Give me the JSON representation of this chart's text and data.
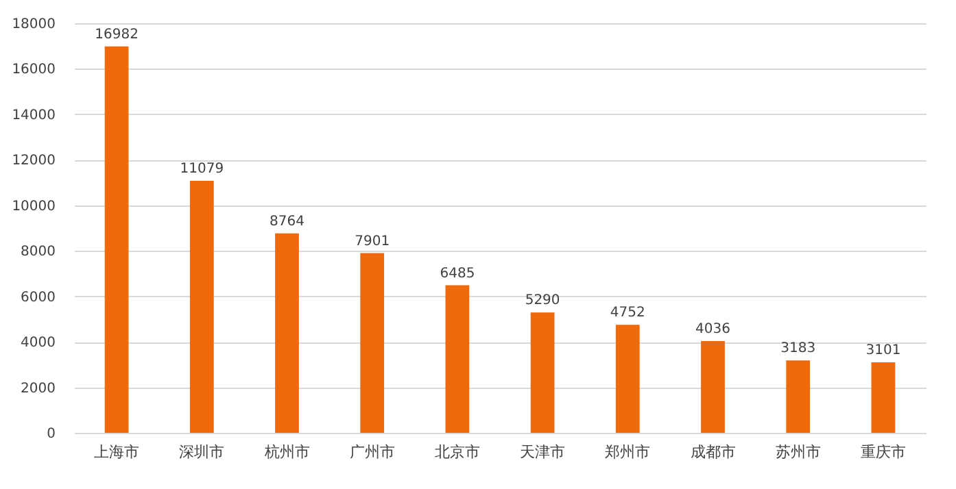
{
  "chart_data": {
    "type": "bar",
    "categories": [
      "上海市",
      "深圳市",
      "杭州市",
      "广州市",
      "北京市",
      "天津市",
      "郑州市",
      "成都市",
      "苏州市",
      "重庆市"
    ],
    "values": [
      16982,
      11079,
      8764,
      7901,
      6485,
      5290,
      4752,
      4036,
      3183,
      3101
    ],
    "color": "#ee6a0b",
    "ylim": [
      0,
      18000
    ],
    "yticks": [
      0,
      2000,
      4000,
      6000,
      8000,
      10000,
      12000,
      14000,
      16000,
      18000
    ],
    "grid": "y",
    "data_labels": true
  }
}
